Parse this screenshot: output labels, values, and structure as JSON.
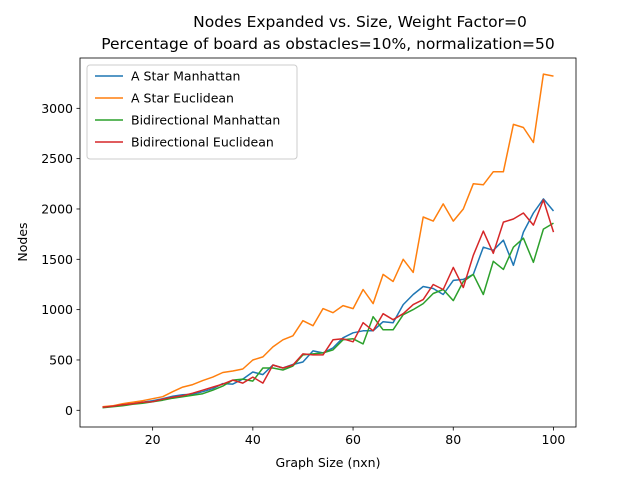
{
  "chart_data": {
    "type": "line",
    "title": "Nodes Expanded vs. Size, Weight Factor=0",
    "subtitle": "Percentage of board as obstacles=10%, normalization=50",
    "xlabel": "Graph Size (nxn)",
    "ylabel": "Nodes",
    "xlim": [
      5.5,
      104.5
    ],
    "ylim": [
      -166,
      3500
    ],
    "xticks": [
      20,
      40,
      60,
      80,
      100
    ],
    "yticks": [
      0,
      500,
      1000,
      1500,
      2000,
      2500,
      3000
    ],
    "grid": false,
    "legend_position": "top-left",
    "x": [
      10,
      12,
      14,
      16,
      18,
      20,
      22,
      24,
      26,
      28,
      30,
      32,
      34,
      36,
      38,
      40,
      42,
      44,
      46,
      48,
      50,
      52,
      54,
      56,
      58,
      60,
      62,
      64,
      66,
      68,
      70,
      72,
      74,
      76,
      78,
      80,
      82,
      84,
      86,
      88,
      90,
      92,
      94,
      96,
      98,
      100
    ],
    "series": [
      {
        "name": "A Star Manhattan",
        "color": "#1f77b4",
        "values": [
          30,
          40,
          50,
          65,
          80,
          95,
          115,
          140,
          155,
          160,
          185,
          215,
          265,
          260,
          310,
          380,
          355,
          450,
          420,
          455,
          480,
          590,
          570,
          620,
          720,
          770,
          790,
          790,
          880,
          870,
          1050,
          1150,
          1230,
          1210,
          1150,
          1290,
          1300,
          1350,
          1620,
          1590,
          1690,
          1440,
          1770,
          1960,
          2100,
          1980
        ]
      },
      {
        "name": "A Star Euclidean",
        "color": "#ff7f0e",
        "values": [
          35,
          45,
          65,
          80,
          95,
          115,
          135,
          185,
          230,
          255,
          295,
          330,
          375,
          390,
          410,
          500,
          530,
          630,
          700,
          740,
          890,
          840,
          1010,
          970,
          1040,
          1010,
          1200,
          1060,
          1350,
          1280,
          1500,
          1370,
          1920,
          1880,
          2050,
          1880,
          2000,
          2250,
          2240,
          2370,
          2370,
          2840,
          2810,
          2660,
          3340,
          3320
        ]
      },
      {
        "name": "Bidirectional Manhattan",
        "color": "#2ca02c",
        "values": [
          25,
          35,
          45,
          60,
          70,
          85,
          100,
          120,
          135,
          150,
          165,
          200,
          240,
          300,
          310,
          290,
          420,
          420,
          400,
          440,
          550,
          560,
          570,
          600,
          700,
          710,
          660,
          930,
          800,
          800,
          950,
          1000,
          1060,
          1160,
          1200,
          1090,
          1280,
          1350,
          1150,
          1480,
          1400,
          1620,
          1710,
          1470,
          1800,
          1860
        ]
      },
      {
        "name": "Bidirectional Euclidean",
        "color": "#d62728",
        "values": [
          30,
          40,
          55,
          65,
          80,
          85,
          110,
          130,
          145,
          170,
          200,
          230,
          260,
          300,
          270,
          330,
          270,
          450,
          420,
          450,
          560,
          550,
          550,
          700,
          710,
          680,
          870,
          790,
          960,
          900,
          960,
          1050,
          1100,
          1250,
          1200,
          1420,
          1220,
          1540,
          1780,
          1560,
          1870,
          1900,
          1960,
          1840,
          2090,
          1770
        ]
      }
    ]
  }
}
